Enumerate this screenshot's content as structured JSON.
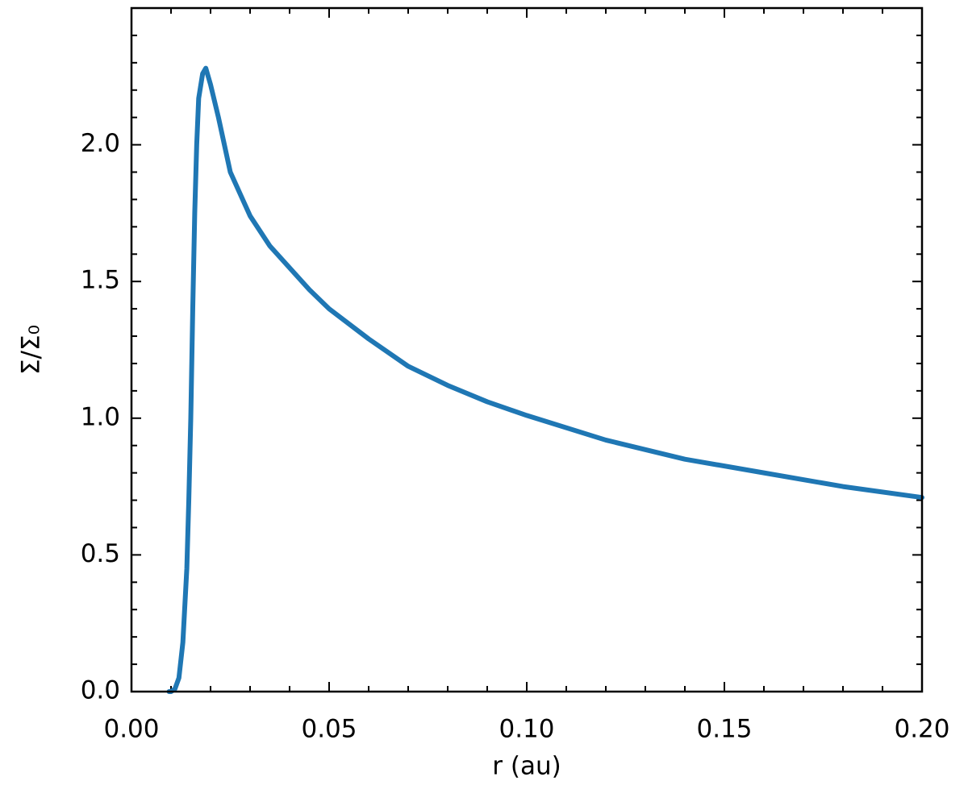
{
  "chart_data": {
    "type": "line",
    "xlabel": "r (au)",
    "ylabel": "Σ/Σ₀",
    "x": [
      0.0095,
      0.01,
      0.011,
      0.012,
      0.013,
      0.014,
      0.0145,
      0.015,
      0.0155,
      0.016,
      0.0165,
      0.017,
      0.018,
      0.0188,
      0.02,
      0.022,
      0.025,
      0.03,
      0.035,
      0.04,
      0.045,
      0.05,
      0.06,
      0.07,
      0.08,
      0.09,
      0.1,
      0.12,
      0.14,
      0.16,
      0.18,
      0.2
    ],
    "series": [
      {
        "color": "#1f77b4",
        "values": [
          0,
          0,
          0.01,
          0.05,
          0.18,
          0.45,
          0.7,
          1.0,
          1.4,
          1.75,
          2.0,
          2.17,
          2.26,
          2.28,
          2.22,
          2.1,
          1.9,
          1.74,
          1.63,
          1.55,
          1.47,
          1.4,
          1.29,
          1.19,
          1.12,
          1.06,
          1.01,
          0.92,
          0.85,
          0.8,
          0.75,
          0.71
        ]
      }
    ],
    "xlim": [
      0,
      0.2
    ],
    "ylim": [
      0,
      2.5
    ],
    "xticks": [
      {
        "value": 0,
        "label": "0.00"
      },
      0.05,
      {
        "value": 0.1,
        "label": "0.10"
      },
      0.15,
      {
        "value": 0.2,
        "label": "0.20"
      }
    ],
    "yticks": [
      {
        "value": 0,
        "label": "0.0"
      },
      0.5,
      {
        "value": 1,
        "label": "1.0"
      },
      1.5,
      {
        "value": 2,
        "label": "2.0"
      }
    ],
    "xminorticks": [
      0.01,
      0.02,
      0.03,
      0.04,
      0.06,
      0.07,
      0.08,
      0.09,
      0.11,
      0.12,
      0.13,
      0.14,
      0.16,
      0.17,
      0.18,
      0.19
    ],
    "yminorticks": [
      0.1,
      0.2,
      0.3,
      0.4,
      0.6,
      0.7,
      0.8,
      0.9,
      1.1,
      1.2,
      1.3,
      1.4,
      1.6,
      1.7,
      1.8,
      1.9,
      2.1,
      2.2,
      2.3,
      2.4
    ],
    "grid": false
  }
}
